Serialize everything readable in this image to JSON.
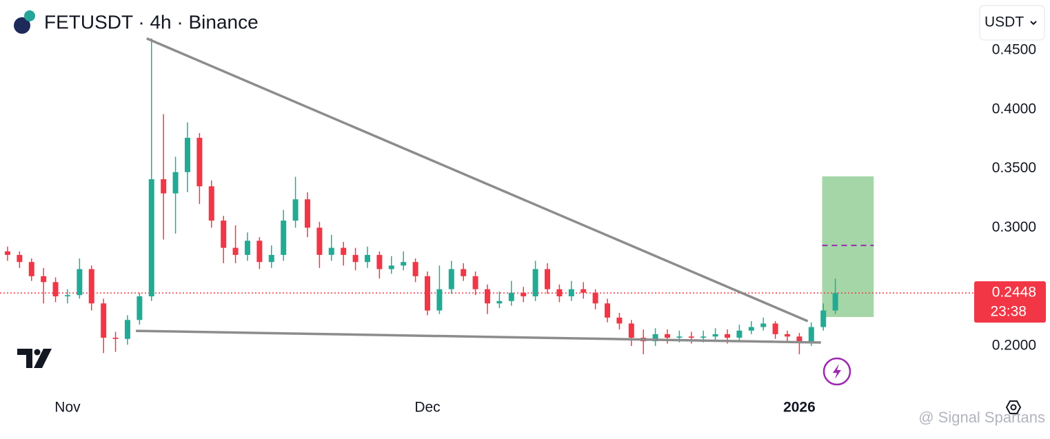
{
  "chart_data": {
    "type": "candlestick",
    "title": "FETUSDT · 4h · Binance",
    "currency": "USDT",
    "x": [
      -5,
      -4,
      -3,
      -2,
      -1,
      0,
      1,
      2,
      3,
      4,
      5,
      6,
      7,
      8,
      9,
      10,
      11,
      12,
      13,
      14,
      15,
      16,
      17,
      18,
      19,
      20,
      21,
      22,
      23,
      24,
      25,
      26,
      27,
      28,
      29,
      30,
      31,
      32,
      33,
      34,
      35,
      36,
      37,
      38,
      39,
      40,
      41,
      42,
      43,
      44,
      45,
      46,
      47,
      48,
      49,
      50,
      51,
      52,
      53,
      54,
      55,
      56,
      57,
      58,
      59,
      60,
      61,
      62,
      63,
      64
    ],
    "open": [
      0.28,
      0.277,
      0.271,
      0.259,
      0.254,
      0.242,
      0.243,
      0.265,
      0.236,
      0.207,
      0.206,
      0.222,
      0.242,
      0.341,
      0.329,
      0.347,
      0.376,
      0.335,
      0.306,
      0.283,
      0.277,
      0.289,
      0.271,
      0.277,
      0.306,
      0.324,
      0.3,
      0.277,
      0.283,
      0.277,
      0.271,
      0.277,
      0.265,
      0.268,
      0.271,
      0.259,
      0.23,
      0.248,
      0.265,
      0.259,
      0.248,
      0.236,
      0.238,
      0.245,
      0.242,
      0.265,
      0.248,
      0.242,
      0.248,
      0.245,
      0.236,
      0.224,
      0.219,
      0.207,
      0.204,
      0.21,
      0.207,
      0.208,
      0.207,
      0.208,
      0.21,
      0.207,
      0.213,
      0.216,
      0.219,
      0.21,
      0.208,
      0.204,
      0.216,
      0.23
    ],
    "high": [
      0.284,
      0.28,
      0.274,
      0.266,
      0.258,
      0.248,
      0.274,
      0.268,
      0.24,
      0.212,
      0.226,
      0.245,
      0.46,
      0.396,
      0.36,
      0.389,
      0.38,
      0.34,
      0.31,
      0.302,
      0.296,
      0.292,
      0.285,
      0.315,
      0.343,
      0.33,
      0.305,
      0.294,
      0.288,
      0.283,
      0.284,
      0.28,
      0.276,
      0.28,
      0.274,
      0.263,
      0.268,
      0.272,
      0.27,
      0.263,
      0.252,
      0.246,
      0.255,
      0.25,
      0.272,
      0.27,
      0.252,
      0.255,
      0.254,
      0.248,
      0.24,
      0.228,
      0.222,
      0.214,
      0.215,
      0.214,
      0.213,
      0.212,
      0.213,
      0.215,
      0.214,
      0.218,
      0.221,
      0.224,
      0.221,
      0.213,
      0.211,
      0.22,
      0.236,
      0.257
    ],
    "low": [
      0.272,
      0.266,
      0.255,
      0.236,
      0.237,
      0.236,
      0.24,
      0.23,
      0.194,
      0.195,
      0.201,
      0.218,
      0.238,
      0.29,
      0.295,
      0.33,
      0.32,
      0.3,
      0.27,
      0.27,
      0.272,
      0.265,
      0.266,
      0.272,
      0.3,
      0.292,
      0.266,
      0.272,
      0.268,
      0.264,
      0.266,
      0.257,
      0.261,
      0.264,
      0.254,
      0.226,
      0.227,
      0.244,
      0.255,
      0.243,
      0.227,
      0.232,
      0.234,
      0.237,
      0.238,
      0.244,
      0.237,
      0.238,
      0.24,
      0.231,
      0.22,
      0.214,
      0.2,
      0.193,
      0.2,
      0.202,
      0.203,
      0.202,
      0.203,
      0.205,
      0.202,
      0.204,
      0.21,
      0.213,
      0.206,
      0.204,
      0.193,
      0.2,
      0.213,
      0.227
    ],
    "close": [
      0.277,
      0.271,
      0.259,
      0.254,
      0.242,
      0.243,
      0.265,
      0.236,
      0.207,
      0.206,
      0.222,
      0.242,
      0.341,
      0.329,
      0.347,
      0.376,
      0.335,
      0.306,
      0.283,
      0.277,
      0.289,
      0.271,
      0.277,
      0.306,
      0.324,
      0.3,
      0.277,
      0.283,
      0.277,
      0.271,
      0.277,
      0.265,
      0.268,
      0.271,
      0.259,
      0.23,
      0.248,
      0.265,
      0.259,
      0.248,
      0.236,
      0.238,
      0.245,
      0.242,
      0.265,
      0.248,
      0.242,
      0.248,
      0.245,
      0.236,
      0.224,
      0.219,
      0.207,
      0.204,
      0.21,
      0.207,
      0.208,
      0.207,
      0.208,
      0.21,
      0.207,
      0.213,
      0.216,
      0.219,
      0.21,
      0.208,
      0.204,
      0.216,
      0.23,
      0.2448
    ],
    "up_color": "#22ab94",
    "down_color": "#f23645",
    "xlim": [
      -5.63,
      75.4
    ],
    "ylim": [
      0.1604,
      0.4925
    ],
    "xticks": [
      {
        "value": 0,
        "label": "Nov"
      },
      {
        "value": 30,
        "label": "Dec"
      },
      {
        "value": 61,
        "label": "2026"
      }
    ],
    "yticks": [
      {
        "value": 0.45,
        "label": "0.4500"
      },
      {
        "value": 0.4,
        "label": "0.4000"
      },
      {
        "value": 0.35,
        "label": "0.3500"
      },
      {
        "value": 0.3,
        "label": "0.3000"
      },
      {
        "value": 0.2,
        "label": "0.2000"
      }
    ],
    "last_price": 0.2448,
    "countdown": "23:38",
    "trendlines": [
      {
        "x": [
          6.6,
          61.7
        ],
        "y": [
          0.46,
          0.221
        ]
      },
      {
        "x": [
          5.7,
          62.8
        ],
        "y": [
          0.2128,
          0.2029
        ]
      }
    ],
    "target_zone": {
      "x": [
        62.9,
        67.2
      ],
      "y": [
        0.2245,
        0.3434
      ],
      "mid": 0.285
    },
    "watermark": "@ Signal Spartans"
  }
}
